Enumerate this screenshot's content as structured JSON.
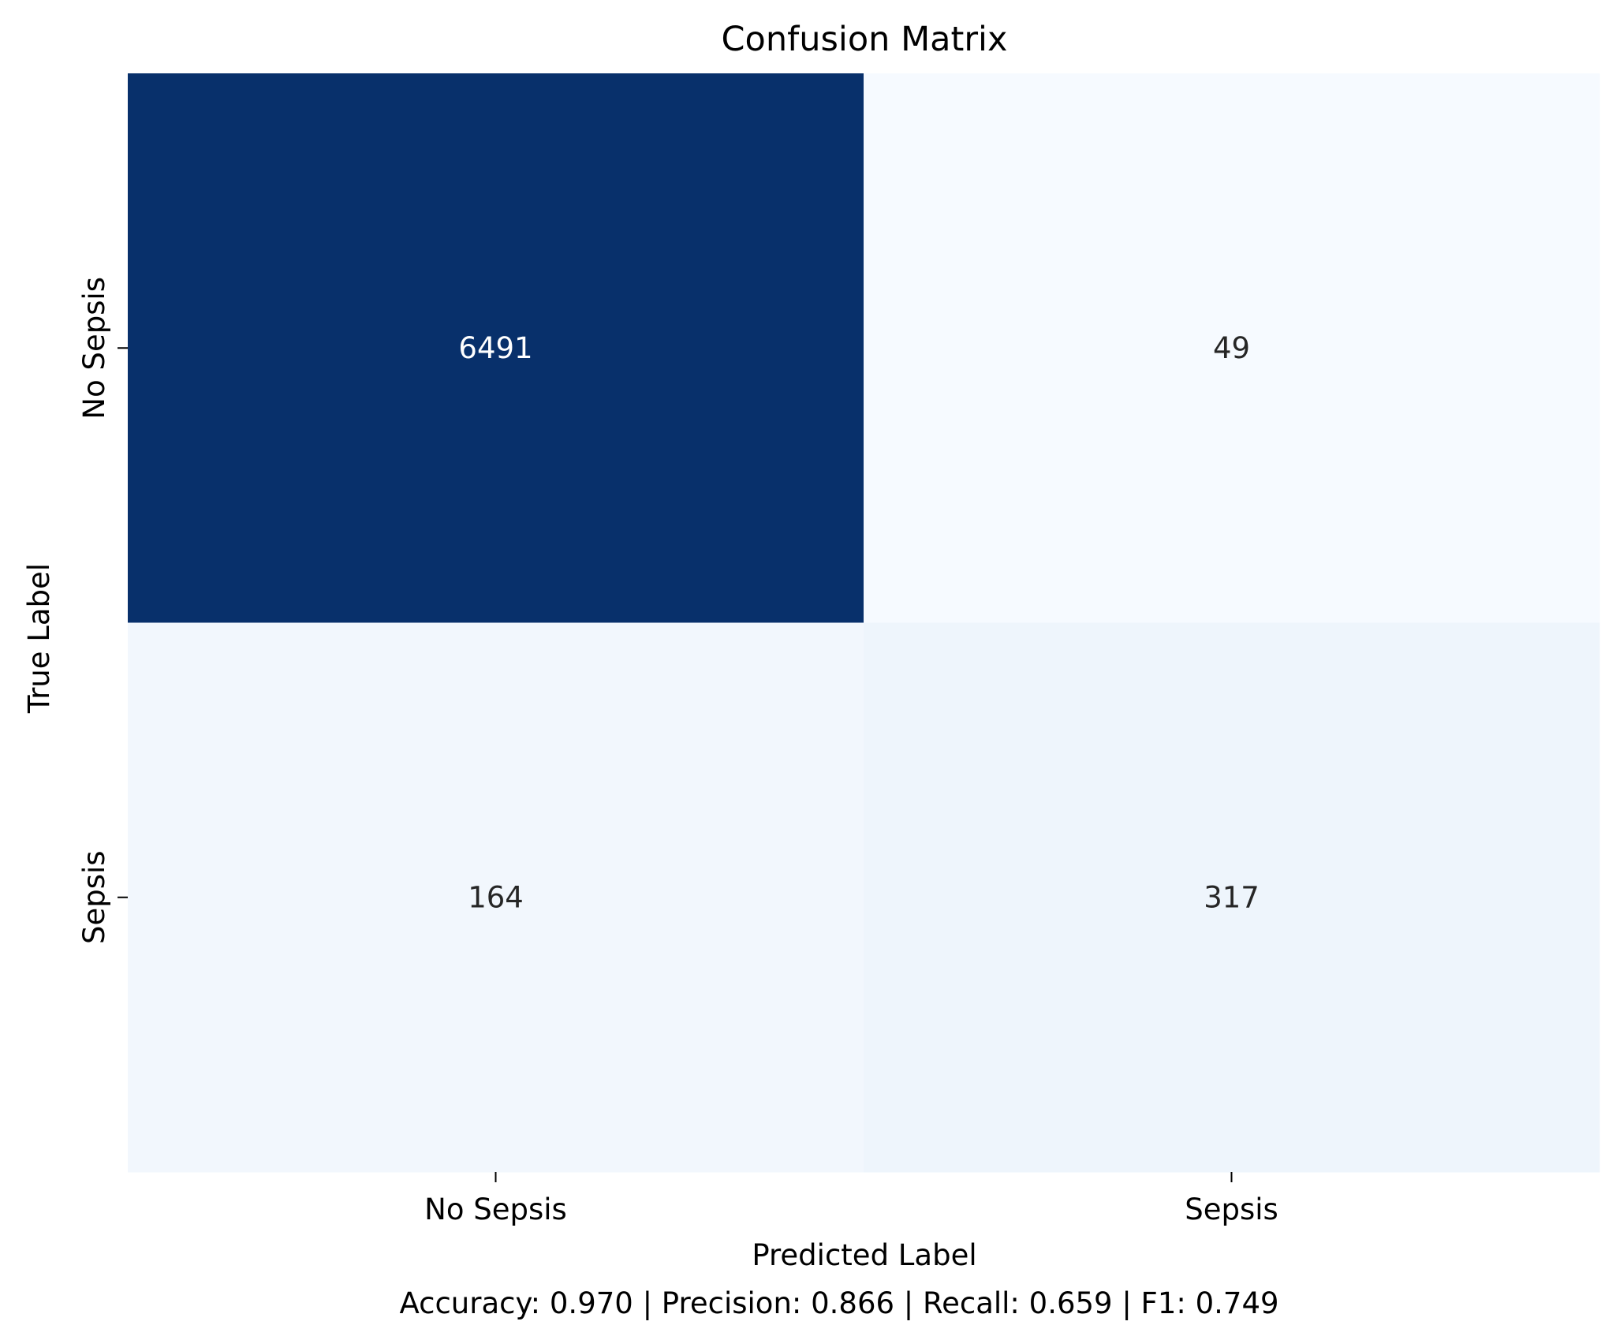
{
  "chart_data": {
    "type": "heatmap",
    "title": "Confusion Matrix",
    "xlabel": "Predicted Label",
    "ylabel": "True Label",
    "x_categories": [
      "No Sepsis",
      "Sepsis"
    ],
    "y_categories": [
      "No Sepsis",
      "Sepsis"
    ],
    "values": [
      [
        6491,
        49
      ],
      [
        164,
        317
      ]
    ],
    "colormap": "Blues",
    "colorbar": false,
    "cell_colors": [
      [
        "#08306b",
        "#f6faff"
      ],
      [
        "#f2f7fd",
        "#eef5fc"
      ]
    ],
    "annotation_colors": [
      [
        "#ffffff",
        "#262626"
      ],
      [
        "#262626",
        "#262626"
      ]
    ],
    "footer": "Accuracy: 0.970 | Precision: 0.866 | Recall: 0.659 | F1: 0.749"
  }
}
